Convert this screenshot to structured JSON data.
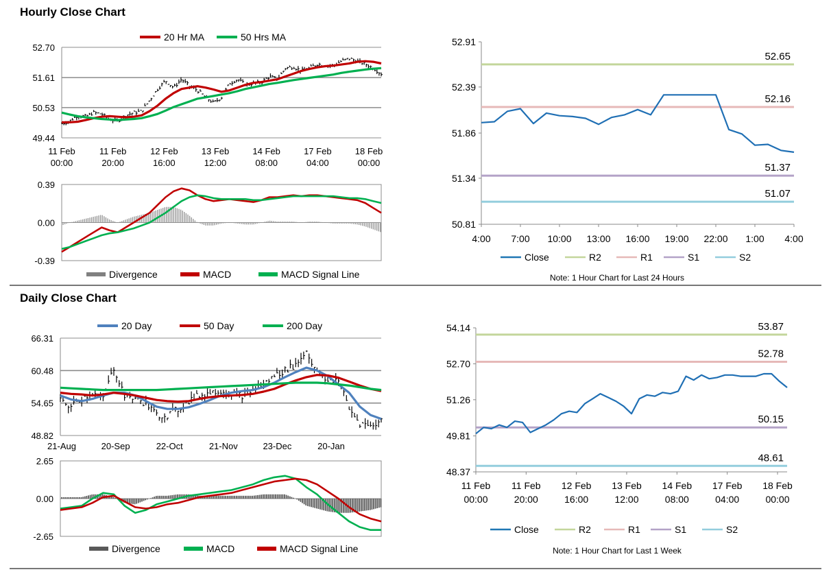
{
  "sections": [
    {
      "title": "Hourly Close Chart"
    },
    {
      "title": "Daily Close Chart"
    }
  ],
  "chart_data": [
    {
      "id": "hourly_price",
      "type": "ohlc",
      "title": "Hourly Close Chart",
      "ylim": [
        49.44,
        52.7
      ],
      "y_ticks": [
        "52.70",
        "51.61",
        "50.53",
        "49.44"
      ],
      "x_ticks": [
        [
          "11 Feb",
          "00:00"
        ],
        [
          "11 Feb",
          "20:00"
        ],
        [
          "12 Feb",
          "16:00"
        ],
        [
          "13 Feb",
          "12:00"
        ],
        [
          "14 Feb",
          "08:00"
        ],
        [
          "17 Feb",
          "04:00"
        ],
        [
          "18 Feb",
          "00:00"
        ]
      ],
      "legend": [
        {
          "name": "20 Hr MA",
          "color": "#c00000"
        },
        {
          "name": "50 Hrs MA",
          "color": "#00b050"
        }
      ],
      "x": [
        0,
        6,
        12,
        18,
        24,
        30,
        36,
        42,
        48,
        54,
        60,
        66,
        72,
        78,
        84,
        90,
        96,
        102,
        108,
        114,
        120,
        126,
        132,
        138,
        144,
        150,
        156,
        162,
        168,
        174,
        180,
        186,
        192,
        198,
        204,
        210,
        216,
        222,
        228,
        234,
        240
      ],
      "close": [
        49.95,
        50.05,
        50.25,
        50.2,
        50.35,
        50.3,
        50.1,
        50.05,
        50.25,
        50.35,
        50.4,
        50.8,
        51.2,
        51.5,
        51.25,
        51.55,
        51.3,
        51.15,
        50.9,
        50.7,
        50.9,
        51.4,
        51.55,
        51.35,
        51.4,
        51.45,
        51.65,
        51.55,
        51.95,
        52.0,
        51.85,
        51.95,
        52.1,
        52.05,
        52.05,
        52.2,
        52.3,
        52.2,
        52.1,
        51.95,
        51.75
      ],
      "series": [
        {
          "name": "20 Hr MA",
          "values": [
            50.0,
            50.0,
            50.02,
            50.08,
            50.15,
            50.2,
            50.22,
            50.2,
            50.18,
            50.2,
            50.25,
            50.4,
            50.6,
            50.85,
            51.05,
            51.2,
            51.25,
            51.3,
            51.25,
            51.18,
            51.1,
            51.15,
            51.25,
            51.35,
            51.42,
            51.45,
            51.5,
            51.55,
            51.65,
            51.75,
            51.85,
            51.92,
            51.98,
            52.02,
            52.04,
            52.08,
            52.12,
            52.18,
            52.2,
            52.18,
            52.12
          ]
        },
        {
          "name": "50 Hrs MA",
          "values": [
            50.35,
            50.28,
            50.22,
            50.18,
            50.15,
            50.12,
            50.1,
            50.08,
            50.1,
            50.12,
            50.15,
            50.22,
            50.3,
            50.42,
            50.55,
            50.65,
            50.75,
            50.85,
            50.9,
            50.95,
            51.0,
            51.05,
            51.12,
            51.2,
            51.26,
            51.32,
            51.38,
            51.42,
            51.47,
            51.52,
            51.56,
            51.6,
            51.64,
            51.68,
            51.72,
            51.78,
            51.82,
            51.86,
            51.9,
            51.93,
            51.95
          ]
        }
      ]
    },
    {
      "id": "hourly_macd",
      "type": "line+bar",
      "ylim": [
        -0.39,
        0.39
      ],
      "y_ticks": [
        "0.39",
        "0.00",
        "-0.39"
      ],
      "legend": [
        {
          "name": "Divergence",
          "color": "#808080"
        },
        {
          "name": "MACD",
          "color": "#c00000"
        },
        {
          "name": "MACD Signal Line",
          "color": "#00b050"
        }
      ],
      "x": [
        0,
        6,
        12,
        18,
        24,
        30,
        36,
        42,
        48,
        54,
        60,
        66,
        72,
        78,
        84,
        90,
        96,
        102,
        108,
        114,
        120,
        126,
        132,
        138,
        144,
        150,
        156,
        162,
        168,
        174,
        180,
        186,
        192,
        198,
        204,
        210,
        216,
        222,
        228,
        234,
        240
      ],
      "series": [
        {
          "name": "MACD",
          "values": [
            -0.3,
            -0.25,
            -0.2,
            -0.15,
            -0.1,
            -0.05,
            -0.08,
            -0.1,
            -0.05,
            0.0,
            0.05,
            0.1,
            0.18,
            0.26,
            0.32,
            0.35,
            0.33,
            0.28,
            0.24,
            0.22,
            0.23,
            0.24,
            0.23,
            0.22,
            0.21,
            0.23,
            0.26,
            0.26,
            0.27,
            0.28,
            0.27,
            0.28,
            0.28,
            0.27,
            0.26,
            0.25,
            0.24,
            0.23,
            0.2,
            0.15,
            0.1
          ]
        },
        {
          "name": "MACD Signal Line",
          "values": [
            -0.27,
            -0.25,
            -0.22,
            -0.19,
            -0.16,
            -0.13,
            -0.11,
            -0.1,
            -0.08,
            -0.06,
            -0.03,
            0.0,
            0.05,
            0.1,
            0.16,
            0.22,
            0.26,
            0.28,
            0.27,
            0.25,
            0.24,
            0.24,
            0.24,
            0.24,
            0.23,
            0.23,
            0.24,
            0.25,
            0.26,
            0.27,
            0.27,
            0.27,
            0.27,
            0.27,
            0.27,
            0.26,
            0.25,
            0.25,
            0.24,
            0.22,
            0.2
          ]
        },
        {
          "name": "Divergence",
          "values": [
            -0.03,
            0.0,
            0.02,
            0.04,
            0.06,
            0.08,
            0.03,
            0.0,
            0.03,
            0.06,
            0.08,
            0.1,
            0.13,
            0.16,
            0.16,
            0.13,
            0.07,
            0.0,
            -0.03,
            -0.03,
            -0.01,
            0.0,
            -0.01,
            -0.02,
            -0.02,
            0.0,
            0.02,
            0.01,
            0.01,
            0.01,
            0.0,
            0.01,
            0.01,
            0.0,
            -0.01,
            -0.01,
            -0.01,
            -0.02,
            -0.04,
            -0.07,
            -0.1
          ]
        }
      ]
    },
    {
      "id": "hourly_levels",
      "type": "line",
      "title": "",
      "ylim": [
        50.81,
        52.91
      ],
      "y_ticks": [
        "52.91",
        "52.39",
        "51.86",
        "51.34",
        "50.81"
      ],
      "categories": [
        "4:00",
        "7:00",
        "10:00",
        "13:00",
        "16:00",
        "19:00",
        "22:00",
        "1:00",
        "4:00"
      ],
      "x": [
        0,
        1,
        2,
        3,
        4,
        5,
        6,
        7,
        8,
        9,
        10,
        11,
        12,
        13,
        14,
        15,
        16,
        17,
        18,
        19,
        20,
        21,
        22,
        23,
        24
      ],
      "series": [
        {
          "name": "Close",
          "values": [
            51.98,
            51.99,
            52.11,
            52.14,
            51.97,
            52.09,
            52.06,
            52.05,
            52.03,
            51.96,
            52.04,
            52.07,
            52.13,
            52.07,
            52.3,
            52.3,
            52.3,
            52.3,
            52.3,
            51.9,
            51.85,
            51.72,
            51.73,
            51.66,
            51.64
          ]
        }
      ],
      "levels": [
        {
          "name": "R2",
          "value": 52.65,
          "label": "52.65",
          "color": "#c3d69b"
        },
        {
          "name": "R1",
          "value": 52.16,
          "label": "52.16",
          "color": "#e6b9b8"
        },
        {
          "name": "S1",
          "value": 51.37,
          "label": "51.37",
          "color": "#b3a2c7"
        },
        {
          "name": "S2",
          "value": 51.07,
          "label": "51.07",
          "color": "#93cddd"
        }
      ],
      "legend": [
        {
          "name": "Close",
          "color": "#1f77b4"
        },
        {
          "name": "R2",
          "color": "#c3d69b"
        },
        {
          "name": "R1",
          "color": "#e6b9b8"
        },
        {
          "name": "S1",
          "color": "#b3a2c7"
        },
        {
          "name": "S2",
          "color": "#93cddd"
        }
      ],
      "note": "Note: 1 Hour Chart for Last 24 Hours"
    },
    {
      "id": "daily_price",
      "type": "ohlc",
      "title": "Daily Close Chart",
      "ylim": [
        48.82,
        66.31
      ],
      "y_ticks": [
        "66.31",
        "60.48",
        "54.65",
        "48.82"
      ],
      "x_ticks": [
        "21-Aug",
        "20-Sep",
        "22-Oct",
        "21-Nov",
        "23-Dec",
        "20-Jan"
      ],
      "legend": [
        {
          "name": "20 Day",
          "color": "#4f81bd"
        },
        {
          "name": "50 Day",
          "color": "#c00000"
        },
        {
          "name": "200 Day",
          "color": "#00b050"
        }
      ],
      "x": [
        0,
        6,
        12,
        18,
        24,
        30,
        36,
        42,
        48,
        54,
        60,
        66,
        72,
        78,
        84,
        90,
        96,
        102,
        108,
        114,
        120,
        126,
        132,
        138,
        144,
        150,
        156,
        162,
        168,
        174,
        180
      ],
      "close": [
        55.0,
        54.0,
        55.5,
        56.5,
        55.5,
        61.0,
        56.0,
        55.5,
        54.5,
        52.5,
        52.5,
        53.5,
        55.0,
        56.0,
        56.5,
        57.0,
        56.5,
        56.0,
        57.0,
        58.0,
        59.5,
        60.5,
        61.5,
        64.0,
        60.0,
        58.5,
        59.0,
        53.5,
        51.0,
        50.5,
        51.5
      ],
      "series": [
        {
          "name": "20 Day",
          "values": [
            56.0,
            55.3,
            55.0,
            55.4,
            56.0,
            56.5,
            56.5,
            56.0,
            55.0,
            54.0,
            53.6,
            53.6,
            53.9,
            54.5,
            55.2,
            56.0,
            56.5,
            56.8,
            57.0,
            57.5,
            58.3,
            59.3,
            60.2,
            61.0,
            60.5,
            59.5,
            58.0,
            56.5,
            54.0,
            52.5,
            51.8
          ]
        },
        {
          "name": "50 Day",
          "values": [
            56.5,
            56.3,
            56.2,
            56.0,
            56.2,
            56.5,
            56.3,
            56.0,
            55.6,
            55.2,
            55.0,
            54.9,
            55.0,
            55.4,
            55.7,
            55.9,
            56.0,
            56.1,
            56.3,
            56.7,
            57.2,
            58.0,
            58.7,
            59.3,
            59.7,
            59.6,
            59.2,
            58.5,
            57.8,
            57.2,
            56.8
          ]
        },
        {
          "name": "200 Day",
          "values": [
            57.4,
            57.3,
            57.2,
            57.1,
            57.0,
            57.0,
            57.0,
            57.0,
            57.0,
            57.0,
            57.1,
            57.2,
            57.3,
            57.4,
            57.5,
            57.6,
            57.7,
            57.8,
            57.9,
            58.0,
            58.1,
            58.2,
            58.3,
            58.3,
            58.3,
            58.2,
            58.0,
            57.8,
            57.5,
            57.2,
            57.0
          ]
        }
      ]
    },
    {
      "id": "daily_macd",
      "type": "line+bar",
      "ylim": [
        -2.65,
        2.65
      ],
      "y_ticks": [
        "2.65",
        "0.00",
        "-2.65"
      ],
      "legend": [
        {
          "name": "Divergence",
          "color": "#595959"
        },
        {
          "name": "MACD",
          "color": "#00b050"
        },
        {
          "name": "MACD Signal Line",
          "color": "#c00000"
        }
      ],
      "x": [
        0,
        6,
        12,
        18,
        24,
        30,
        36,
        42,
        48,
        54,
        60,
        66,
        72,
        78,
        84,
        90,
        96,
        102,
        108,
        114,
        120,
        126,
        132,
        138,
        144,
        150,
        156,
        162,
        168,
        174,
        180
      ],
      "series": [
        {
          "name": "MACD",
          "values": [
            -0.7,
            -0.6,
            -0.5,
            0.0,
            0.4,
            0.3,
            -0.5,
            -1.0,
            -0.8,
            -0.4,
            -0.2,
            0.0,
            0.2,
            0.3,
            0.4,
            0.5,
            0.6,
            0.8,
            1.0,
            1.3,
            1.5,
            1.6,
            1.4,
            0.8,
            0.3,
            -0.4,
            -1.0,
            -1.6,
            -2.0,
            -2.2,
            -2.2
          ]
        },
        {
          "name": "MACD Signal Line",
          "values": [
            -0.8,
            -0.7,
            -0.6,
            -0.3,
            0.1,
            0.2,
            -0.2,
            -0.6,
            -0.7,
            -0.6,
            -0.4,
            -0.3,
            -0.1,
            0.1,
            0.2,
            0.3,
            0.4,
            0.6,
            0.8,
            1.0,
            1.2,
            1.3,
            1.4,
            1.3,
            1.0,
            0.5,
            0.0,
            -0.6,
            -1.1,
            -1.4,
            -1.6
          ]
        },
        {
          "name": "Divergence",
          "values": [
            0.1,
            0.1,
            0.1,
            0.3,
            0.3,
            0.1,
            -0.3,
            -0.4,
            -0.1,
            0.2,
            0.2,
            0.3,
            0.3,
            0.2,
            0.2,
            0.2,
            0.2,
            0.2,
            0.2,
            0.3,
            0.3,
            0.3,
            0.0,
            -0.5,
            -0.7,
            -0.9,
            -1.0,
            -1.0,
            -0.9,
            -0.8,
            -0.6
          ]
        }
      ]
    },
    {
      "id": "weekly_levels",
      "type": "line",
      "ylim": [
        48.37,
        54.14
      ],
      "y_ticks": [
        "54.14",
        "52.70",
        "51.26",
        "49.81",
        "48.37"
      ],
      "x_ticks": [
        [
          "11 Feb",
          "00:00"
        ],
        [
          "11 Feb",
          "20:00"
        ],
        [
          "12 Feb",
          "16:00"
        ],
        [
          "13 Feb",
          "12:00"
        ],
        [
          "14 Feb",
          "08:00"
        ],
        [
          "17 Feb",
          "04:00"
        ],
        [
          "18 Feb",
          "00:00"
        ]
      ],
      "x": [
        0,
        6,
        12,
        18,
        24,
        30,
        36,
        42,
        48,
        54,
        60,
        66,
        72,
        78,
        84,
        90,
        96,
        102,
        108,
        114,
        120,
        126,
        132,
        138,
        144,
        150,
        156,
        162,
        168,
        174,
        180,
        186,
        192,
        198,
        204,
        210,
        216,
        222,
        228,
        234,
        240
      ],
      "series": [
        {
          "name": "Close",
          "values": [
            49.9,
            50.15,
            50.1,
            50.25,
            50.15,
            50.4,
            50.35,
            49.95,
            50.1,
            50.25,
            50.45,
            50.7,
            50.8,
            50.75,
            51.1,
            51.3,
            51.5,
            51.35,
            51.2,
            51.0,
            50.7,
            51.3,
            51.45,
            51.4,
            51.55,
            51.5,
            51.6,
            52.2,
            52.05,
            52.25,
            52.1,
            52.15,
            52.25,
            52.25,
            52.2,
            52.2,
            52.2,
            52.3,
            52.3,
            52.0,
            51.75
          ]
        }
      ],
      "levels": [
        {
          "name": "R2",
          "value": 53.87,
          "label": "53.87",
          "color": "#c3d69b"
        },
        {
          "name": "R1",
          "value": 52.78,
          "label": "52.78",
          "color": "#e6b9b8"
        },
        {
          "name": "S1",
          "value": 50.15,
          "label": "50.15",
          "color": "#b3a2c7"
        },
        {
          "name": "S2",
          "value": 48.61,
          "label": "48.61",
          "color": "#93cddd"
        }
      ],
      "legend": [
        {
          "name": "Close",
          "color": "#1f77b4"
        },
        {
          "name": "R2",
          "color": "#c3d69b"
        },
        {
          "name": "R1",
          "color": "#e6b9b8"
        },
        {
          "name": "S1",
          "color": "#b3a2c7"
        },
        {
          "name": "S2",
          "color": "#93cddd"
        }
      ],
      "note": "Note: 1 Hour Chart for Last 1 Week"
    }
  ]
}
